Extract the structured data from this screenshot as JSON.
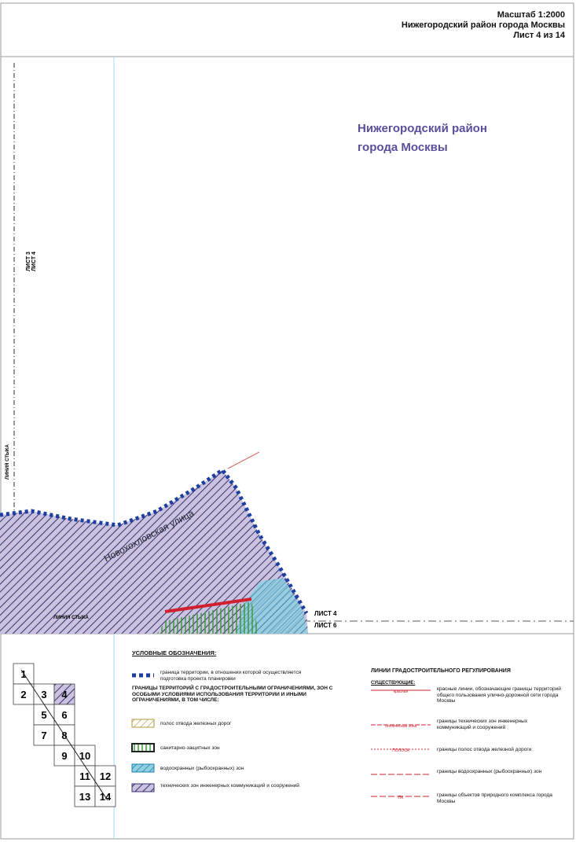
{
  "header": {
    "scale": "Масштаб 1:2000",
    "district": "Нижегородский район города Москвы",
    "sheet": "Лист 4 из 14"
  },
  "map": {
    "title": [
      "Нижегородский район",
      "города Москвы"
    ],
    "sheet_left_top": "ЛИСТ 3",
    "sheet_left_bottom": "ЛИСТ 4",
    "join_line_vertical": "ЛИНИЯ СТЫКА",
    "join_line_horizontal": "ЛИНИЯ СТЫКА",
    "street": "Новохохловская улица",
    "sheet_right_top": "ЛИСТ 4",
    "sheet_right_bottom": "ЛИСТ 6"
  },
  "index": {
    "cells": [
      "1",
      "2",
      "3",
      "4",
      "5",
      "6",
      "7",
      "8",
      "9",
      "10",
      "11",
      "12",
      "13",
      "14"
    ]
  },
  "legend": {
    "title": "УСЛОВНЫЕ ОБОЗНАЧЕНИЯ:",
    "boundary": "граница территории, в отношении которой осуществляется подготовка проекта планировки",
    "group": "ГРАНИЦЫ ТЕРРИТОРИЙ С ГРАДОСТРОИТЕЛЬНЫМИ ОГРАНИЧЕНИЯМИ, ЗОН С ОСОБЫМИ УСЛОВИЯМИ ИСПОЛЬЗОВАНИЯ ТЕРРИТОРИИ И ИНЫМИ ОГРАНИЧЕНИЯМИ, В ТОМ ЧИСЛЕ:",
    "items": [
      "полос отвода железных дорог",
      "санитарно-защитных зон",
      "водоохранных (рыбоохранных) зон",
      "технических зон инженерных коммуникаций и сооружений"
    ]
  },
  "regulation": {
    "title": "ЛИНИИ ГРАДОСТРОИТЕЛЬНОГО РЕГУЛИРОВАНИЯ",
    "subtitle": "СУЩЕСТВУЮЩИЕ:",
    "items": [
      {
        "symbol": "красная",
        "text": "красные линии, обозначающие границы территорий общего пользования улично-дорожной сети города Москвы"
      },
      {
        "symbol": "техническая зона",
        "text": "границы технических зон инженерных коммуникаций и сооружений"
      },
      {
        "symbol": "ПОЛОСА",
        "text": "границы полос отвода железной дороги"
      },
      {
        "symbol": "",
        "text": "границы водоохранных (рыбоохранных) зон"
      },
      {
        "symbol": "ПК",
        "text": "границы объектов природного комплекса города Москвы"
      }
    ]
  }
}
